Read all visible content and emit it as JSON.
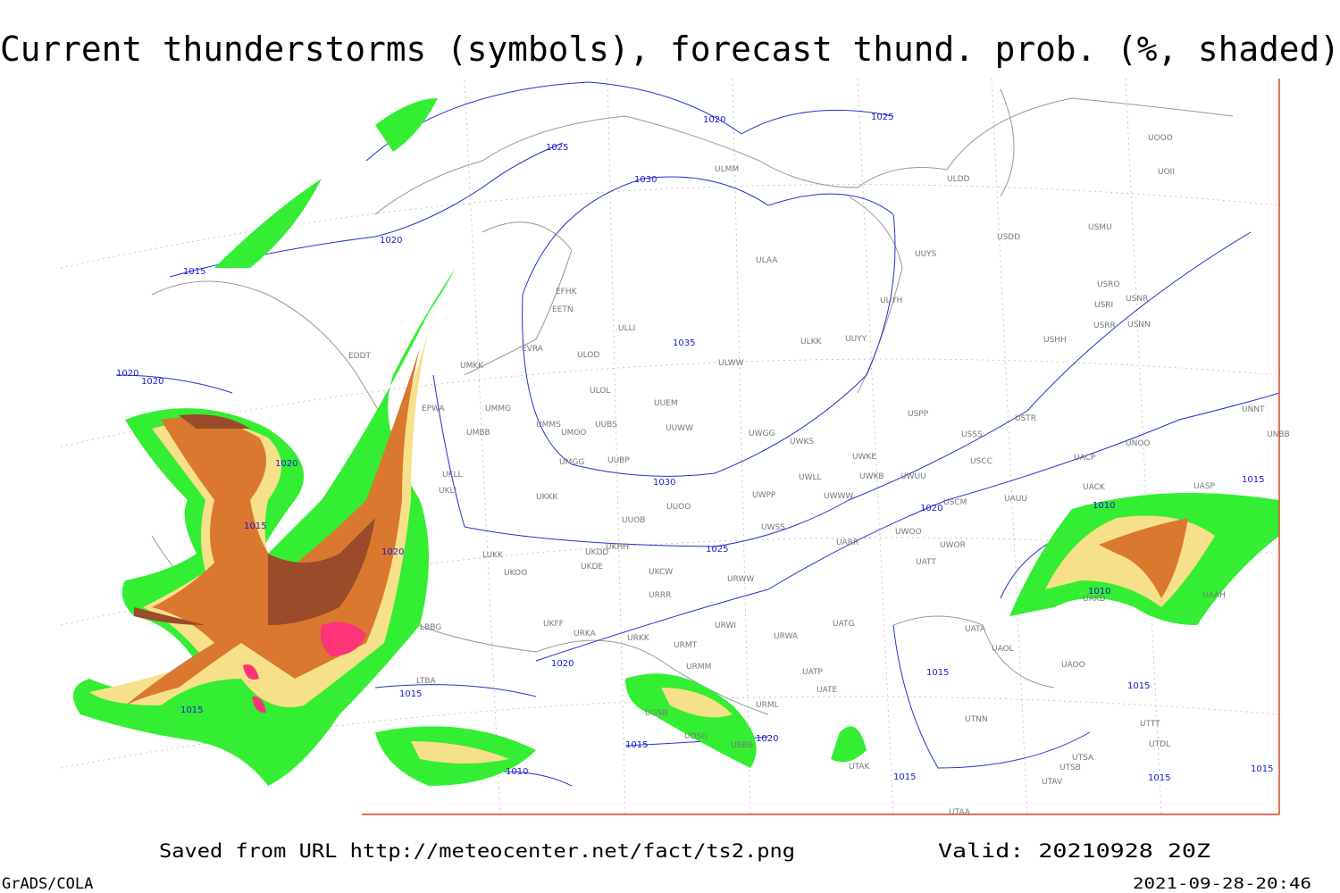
{
  "title": "Current thunderstorms (symbols), forecast thund. prob. (%, shaded)",
  "footer": {
    "source": "Saved from URL http://meteocenter.net/fact/ts2.png",
    "valid": "Valid: 20210928 20Z",
    "software": "GrADS/COLA",
    "timestamp": "2021-09-28-20:46"
  },
  "isobar_labels": [
    "1020",
    "1025",
    "1025",
    "1030",
    "1020",
    "1015",
    "1020",
    "1020",
    "1035",
    "1020",
    "1015",
    "1020",
    "1025",
    "1030",
    "1020",
    "1010",
    "1010",
    "1015",
    "1020",
    "1015",
    "1015",
    "1015",
    "1015",
    "1015",
    "1020",
    "1010",
    "1015",
    "1015",
    "1015"
  ],
  "stations": [
    "ULMM",
    "ULDD",
    "UOOO",
    "UOII",
    "USMU",
    "USDD",
    "UUYS",
    "ULAA",
    "USRO",
    "USNR",
    "USRI",
    "USRR",
    "USNN",
    "UUYH",
    "EFHK",
    "EETN",
    "ULLI",
    "USHH",
    "ULKK",
    "UUYY",
    "EVRA",
    "ULOD",
    "ULWW",
    "UMKK",
    "EDDT",
    "ULOL",
    "UUEM",
    "USPP",
    "EPWA",
    "UMMG",
    "USTR",
    "UMMS",
    "UUBS",
    "UUWW",
    "UMBB",
    "UMOO",
    "UWGG",
    "USSS",
    "UWKS",
    "UNOO",
    "UNBB",
    "UNNT",
    "UWKE",
    "UMGG",
    "UUBP",
    "UWKB",
    "UWUU",
    "USCC",
    "UACP",
    "UKLL",
    "UKLI",
    "UACK",
    "UASP",
    "UWLL",
    "UWPP",
    "UWWW",
    "UKKK",
    "UUOO",
    "USCM",
    "UAUU",
    "UUOB",
    "UWSS",
    "UWOO",
    "UATT",
    "UAAH",
    "UKHH",
    "UKDD",
    "UKDE",
    "UARR",
    "UWOR",
    "LUKK",
    "UKOO",
    "UKCW",
    "URWW",
    "URRR",
    "UKFF",
    "UATG",
    "URWI",
    "UATA",
    "URKA",
    "URKK",
    "URMT",
    "URWA",
    "UAOL",
    "URMM",
    "UAOO",
    "UATP",
    "UATE",
    "URML",
    "UTNN",
    "LTBA",
    "LBBG",
    "UGSB",
    "UDSG",
    "UBBB",
    "UTAK",
    "UTSA",
    "UTSB",
    "UTAV",
    "UTAA",
    "UTDL",
    "UAKD",
    "UTTT"
  ]
}
